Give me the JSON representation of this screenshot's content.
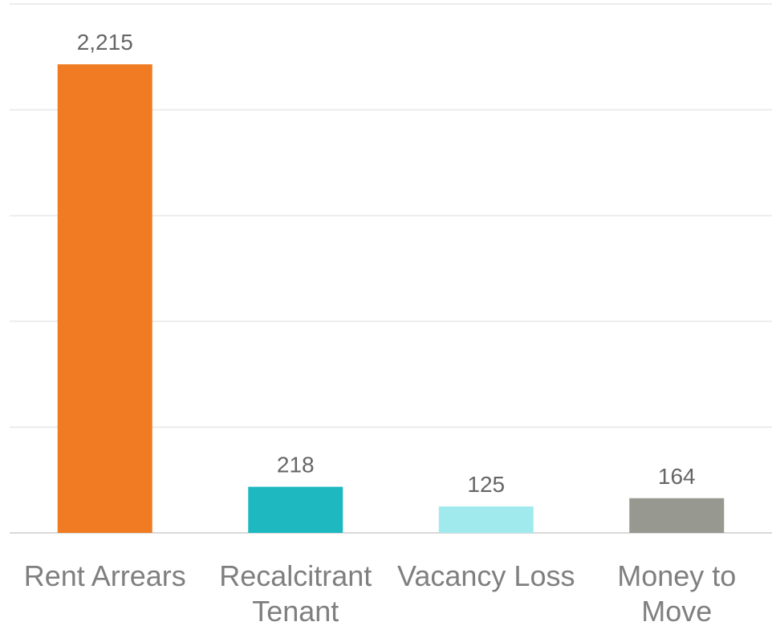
{
  "chart_data": {
    "type": "bar",
    "categories": [
      "Rent Arrears",
      "Recalcitrant Tenant",
      "Vacancy Loss",
      "Money to Move"
    ],
    "values": [
      2215,
      218,
      125,
      164
    ],
    "value_labels": [
      "2,215",
      "218",
      "125",
      "164"
    ],
    "colors": [
      "#f07b22",
      "#1eb8c0",
      "#a0eaee",
      "#979890"
    ],
    "ylim": [
      0,
      2500
    ],
    "yticks": [
      0,
      500,
      1000,
      1500,
      2000,
      2500
    ],
    "grid": true
  }
}
